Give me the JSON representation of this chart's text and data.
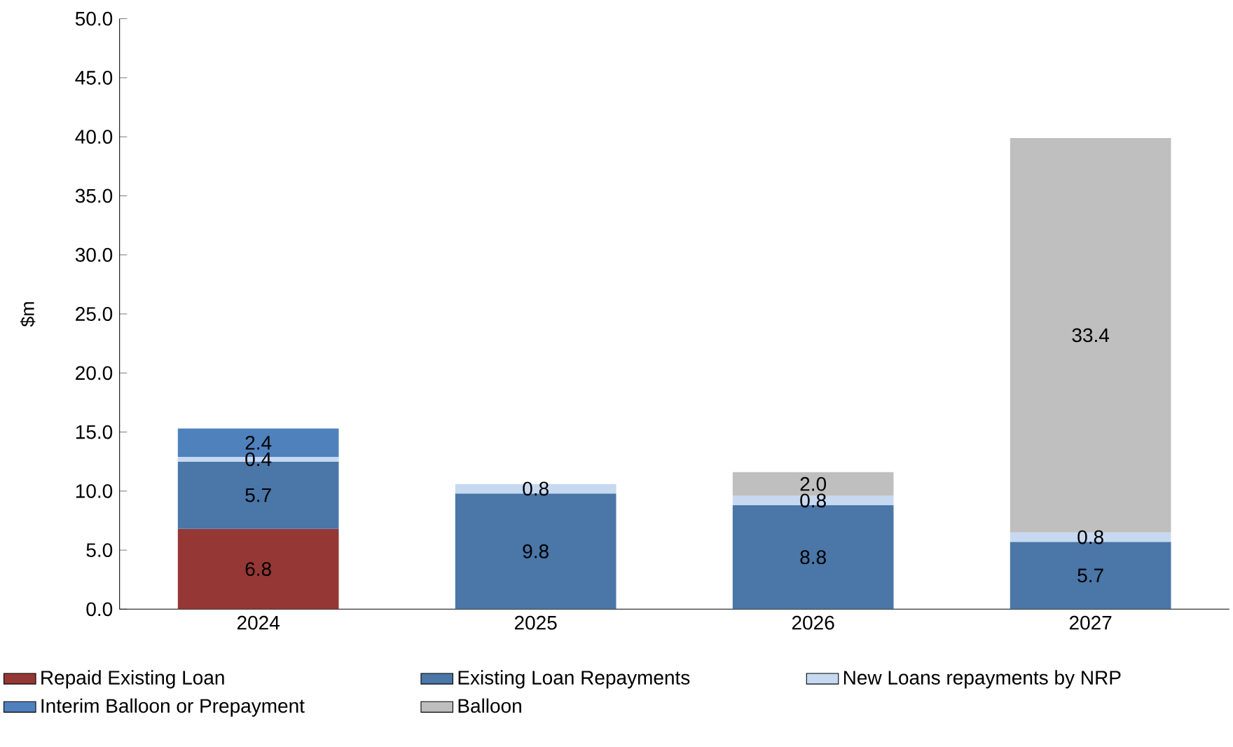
{
  "chart_data": {
    "type": "bar",
    "stacked": true,
    "ylabel": "$m",
    "categories": [
      "2024",
      "2025",
      "2026",
      "2027"
    ],
    "series": [
      {
        "name": "Repaid Existing Loan",
        "color": "#953735",
        "values": [
          6.8,
          null,
          null,
          null
        ],
        "value_labels": [
          "6.8",
          null,
          null,
          null
        ]
      },
      {
        "name": "Existing Loan Repayments",
        "color": "#4a76a8",
        "values": [
          5.7,
          9.8,
          8.8,
          5.7
        ],
        "value_labels": [
          "5.7",
          "9.8",
          "8.8",
          "5.7"
        ]
      },
      {
        "name": "New Loans repayments by NRP",
        "color": "#c6d9f0",
        "values": [
          0.4,
          0.8,
          0.8,
          0.8
        ],
        "value_labels": [
          "0.4",
          "0.8",
          "0.8",
          "0.8"
        ]
      },
      {
        "name": "Interim Balloon or Prepayment",
        "color": "#4f81bd",
        "values": [
          2.4,
          null,
          null,
          null
        ],
        "value_labels": [
          "2.4",
          null,
          null,
          null
        ]
      },
      {
        "name": "Balloon",
        "color": "#bfbfbf",
        "values": [
          null,
          null,
          2.0,
          33.4
        ],
        "value_labels": [
          null,
          null,
          "2.0",
          "33.4"
        ]
      }
    ],
    "ylim": [
      0,
      50
    ],
    "yticks": [
      {
        "value": 0,
        "label": "0.0"
      },
      {
        "value": 5,
        "label": "5.0"
      },
      {
        "value": 10,
        "label": "10.0"
      },
      {
        "value": 15,
        "label": "15.0"
      },
      {
        "value": 20,
        "label": "20.0"
      },
      {
        "value": 25,
        "label": "25.0"
      },
      {
        "value": 30,
        "label": "30.0"
      },
      {
        "value": 35,
        "label": "35.0"
      },
      {
        "value": 40,
        "label": "40.0"
      },
      {
        "value": 45,
        "label": "45.0"
      },
      {
        "value": 50,
        "label": "50.0"
      }
    ],
    "grid": false,
    "legend": "bottom"
  }
}
